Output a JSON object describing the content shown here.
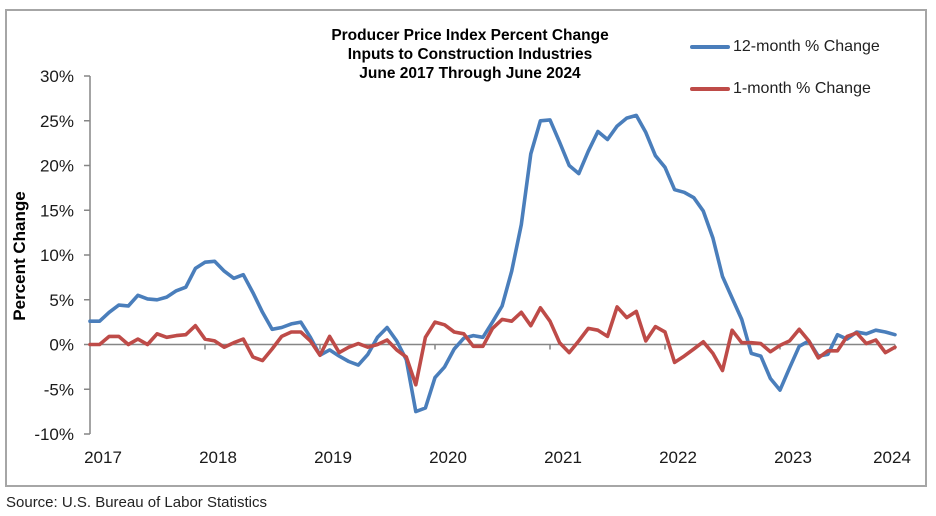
{
  "chart_data": {
    "type": "line",
    "title": [
      "Producer Price Index Percent Change",
      "Inputs to Construction Industries",
      "June 2017 Through June 2024"
    ],
    "xlabel": "",
    "ylabel": "Percent Change",
    "ylim": [
      -10,
      30
    ],
    "yticks": [
      -10,
      -5,
      0,
      5,
      10,
      15,
      20,
      25,
      30
    ],
    "ytick_labels": [
      "-10%",
      "-5%",
      "0%",
      "5%",
      "10%",
      "15%",
      "20%",
      "25%",
      "30%"
    ],
    "xtick_labels": [
      "2017",
      "2018",
      "2019",
      "2020",
      "2021",
      "2022",
      "2023",
      "2024"
    ],
    "x_start": "2017-06",
    "x_end": "2024-06",
    "x_frequency": "monthly",
    "grid": false,
    "legend_position": "top-right",
    "series": [
      {
        "name": "12-month % Change",
        "color": "#4a7ebb",
        "values": [
          2.6,
          2.6,
          3.6,
          4.4,
          4.3,
          5.5,
          5.1,
          5.0,
          5.3,
          6.0,
          6.4,
          8.5,
          9.2,
          9.3,
          8.2,
          7.4,
          7.8,
          5.8,
          3.6,
          1.7,
          1.9,
          2.3,
          2.5,
          0.8,
          -1.2,
          -0.6,
          -1.3,
          -1.9,
          -2.3,
          -1.1,
          0.8,
          1.9,
          0.4,
          -1.7,
          -7.5,
          -7.1,
          -3.7,
          -2.5,
          -0.5,
          0.7,
          1.0,
          0.8,
          2.5,
          4.3,
          8.2,
          13.4,
          21.3,
          25.0,
          25.1,
          22.6,
          20.0,
          19.1,
          21.6,
          23.8,
          22.9,
          24.4,
          25.3,
          25.6,
          23.7,
          21.1,
          19.8,
          17.3,
          17.0,
          16.4,
          14.9,
          11.9,
          7.6,
          5.2,
          2.8,
          -1.0,
          -1.3,
          -3.8,
          -5.1,
          -2.6,
          -0.2,
          0.4,
          -1.3,
          -1.1,
          1.1,
          0.6,
          1.4,
          1.2,
          1.6,
          1.4,
          1.1
        ]
      },
      {
        "name": "1-month % Change",
        "color": "#be4b48",
        "values": [
          0.0,
          0.0,
          0.9,
          0.9,
          0.0,
          0.6,
          0.0,
          1.2,
          0.8,
          1.0,
          1.1,
          2.1,
          0.6,
          0.4,
          -0.3,
          0.2,
          0.6,
          -1.4,
          -1.8,
          -0.5,
          0.9,
          1.4,
          1.4,
          0.4,
          -1.2,
          0.9,
          -0.9,
          -0.3,
          0.1,
          -0.3,
          0.0,
          0.5,
          -0.6,
          -1.4,
          -4.5,
          0.8,
          2.5,
          2.2,
          1.4,
          1.2,
          -0.2,
          -0.2,
          1.8,
          2.8,
          2.6,
          3.6,
          2.1,
          4.1,
          2.6,
          0.2,
          -0.9,
          0.4,
          1.8,
          1.6,
          0.9,
          4.2,
          3.0,
          3.7,
          0.4,
          2.0,
          1.4,
          -2.0,
          -1.3,
          -0.5,
          0.3,
          -1.0,
          -2.9,
          1.6,
          0.2,
          0.2,
          0.1,
          -0.8,
          -0.1,
          0.4,
          1.7,
          0.4,
          -1.5,
          -0.7,
          -0.7,
          0.9,
          1.3,
          0.1,
          0.5,
          -0.9,
          -0.3
        ]
      }
    ]
  },
  "source": "Source: U.S. Bureau of Labor Statistics"
}
